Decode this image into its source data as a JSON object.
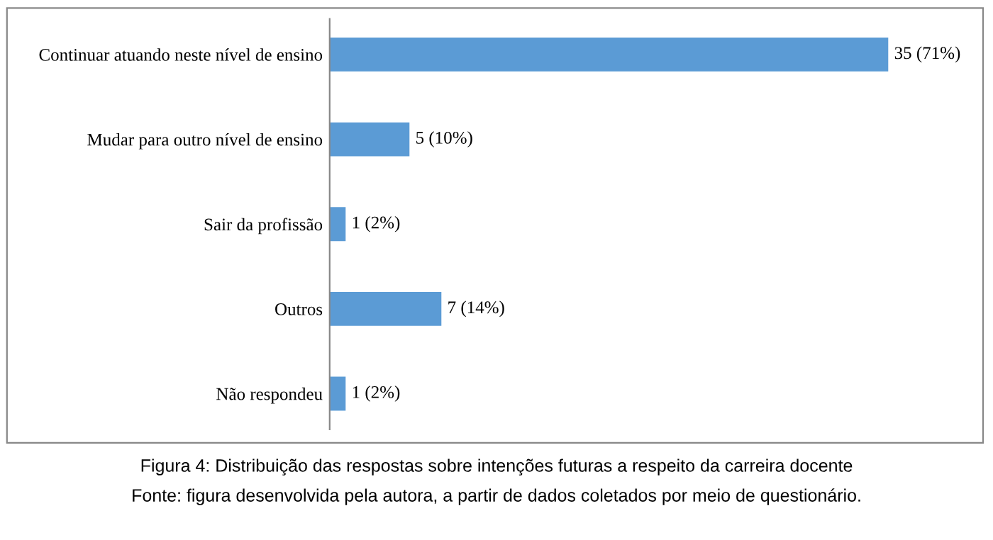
{
  "chart_data": {
    "type": "bar",
    "orientation": "horizontal",
    "categories": [
      "Continuar atuando neste nível de ensino",
      "Mudar para outro nível de ensino",
      "Sair da profissão",
      "Outros",
      "Não respondeu"
    ],
    "values": [
      35,
      5,
      1,
      7,
      1
    ],
    "value_labels": [
      "35 (71%)",
      "5 (10%)",
      "1 (2%)",
      "7 (14%)",
      "1 (2%)"
    ],
    "color": "#5b9bd5",
    "grid": false,
    "legend": false,
    "tick_labels": "y",
    "annotations": [
      "Figura 4: Distribuição das respostas sobre intenções futuras a respeito da carreira docente",
      "Fonte: figura desenvolvida pela autora, a partir de dados coletados por meio de questionário."
    ]
  }
}
